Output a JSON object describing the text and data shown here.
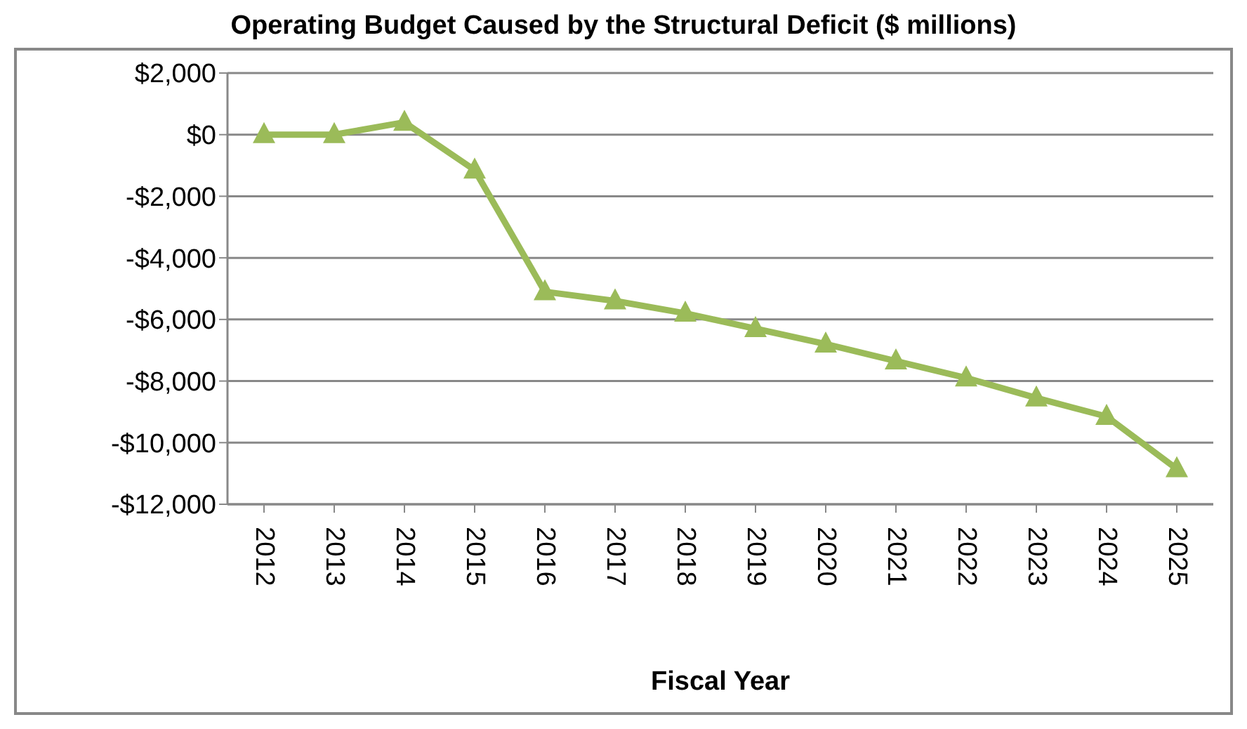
{
  "chart_data": {
    "type": "line",
    "title": "Operating Budget Caused by the Structural Deficit  ($ millions)",
    "xlabel": "Fiscal Year",
    "categories": [
      "2012",
      "2013",
      "2014",
      "2015",
      "2016",
      "2017",
      "2018",
      "2019",
      "2020",
      "2021",
      "2022",
      "2023",
      "2024",
      "2025"
    ],
    "series": [
      {
        "color": "#9bbb59",
        "values": [
          0,
          0,
          400,
          -1150,
          -5100,
          -5400,
          -5800,
          -6300,
          -6800,
          -7350,
          -7900,
          -8550,
          -9150,
          -10850
        ]
      }
    ],
    "ylim": [
      -12000,
      2000
    ],
    "yticks": [
      {
        "value": -12000,
        "label": "-$12,000"
      },
      {
        "value": -10000,
        "label": "-$10,000"
      },
      {
        "value": -8000,
        "label": "-$8,000"
      },
      {
        "value": -6000,
        "label": "-$6,000"
      },
      {
        "value": -4000,
        "label": "-$4,000"
      },
      {
        "value": -2000,
        "label": "-$2,000"
      },
      {
        "value": 0,
        "label": "$0"
      },
      {
        "value": 2000,
        "label": "$2,000"
      }
    ],
    "grid": "y",
    "legend": false,
    "marker": "triangle",
    "line_style": "solid"
  }
}
